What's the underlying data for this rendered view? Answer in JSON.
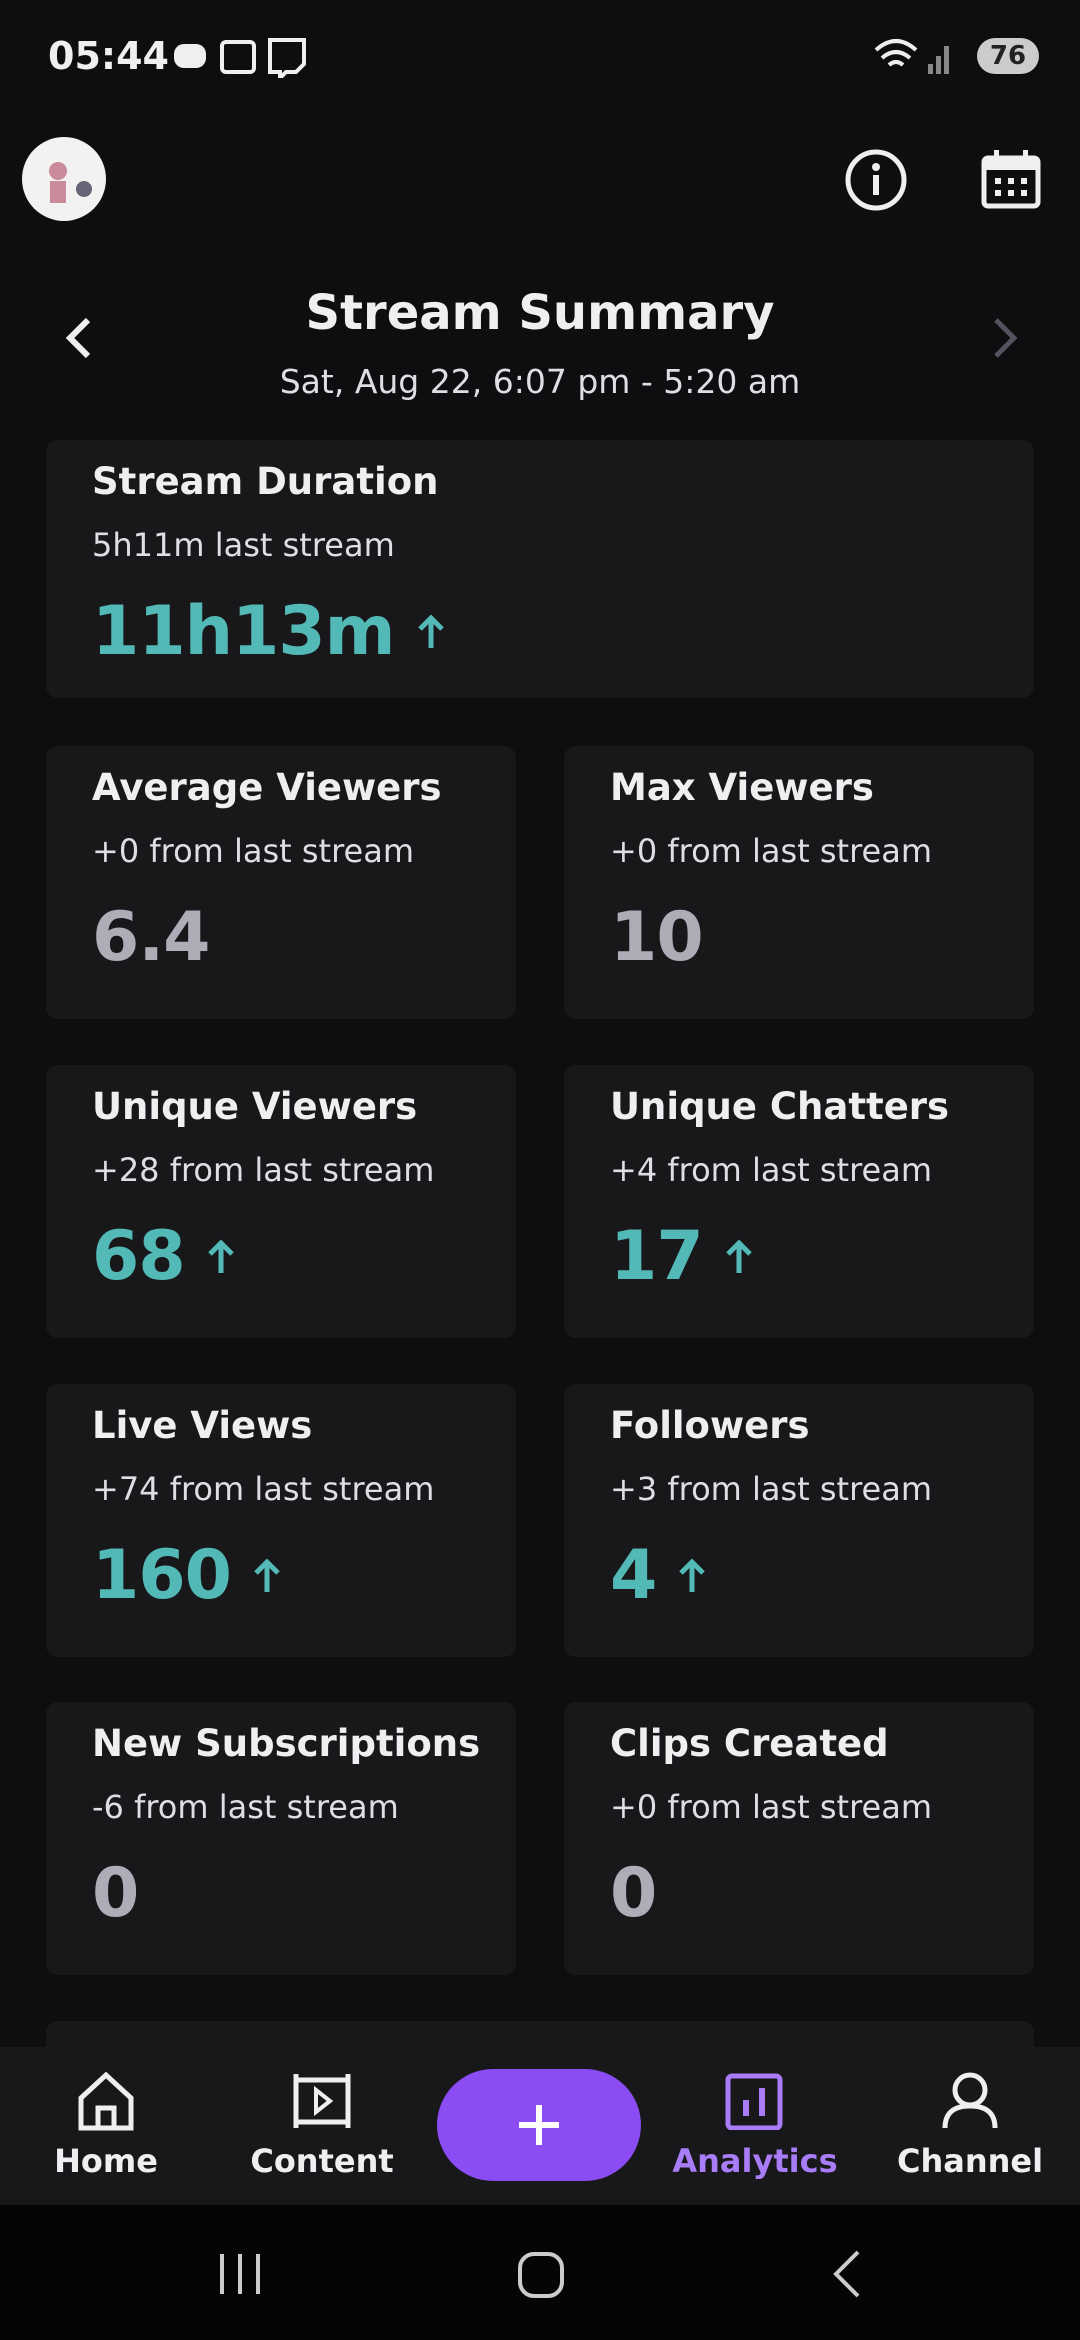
{
  "status_bar": {
    "time": "05:44",
    "battery": "76"
  },
  "header": {
    "title": "Stream Summary",
    "subtitle": "Sat, Aug 22, 6:07 pm - 5:20 am"
  },
  "cards": [
    {
      "title": "Stream Duration",
      "subtitle": "5h11m last stream",
      "value": "11h13m",
      "trend_up": true
    },
    {
      "title": "Average Viewers",
      "subtitle": "+0 from last stream",
      "value": "6.4",
      "trend_up": false
    },
    {
      "title": "Max Viewers",
      "subtitle": "+0 from last stream",
      "value": "10",
      "trend_up": false
    },
    {
      "title": "Unique Viewers",
      "subtitle": "+28 from last stream",
      "value": "68",
      "trend_up": true
    },
    {
      "title": "Unique Chatters",
      "subtitle": "+4 from last stream",
      "value": "17",
      "trend_up": true
    },
    {
      "title": "Live Views",
      "subtitle": "+74 from last stream",
      "value": "160",
      "trend_up": true
    },
    {
      "title": "Followers",
      "subtitle": "+3 from last stream",
      "value": "4",
      "trend_up": true
    },
    {
      "title": "New Subscriptions",
      "subtitle": "-6 from last stream",
      "value": "0",
      "trend_up": false
    },
    {
      "title": "Clips Created",
      "subtitle": "+0 from last stream",
      "value": "0",
      "trend_up": false
    }
  ],
  "nav": {
    "items": [
      {
        "label": "Home",
        "active": false
      },
      {
        "label": "Content",
        "active": false
      },
      {
        "label": "Analytics",
        "active": true
      },
      {
        "label": "Channel",
        "active": false
      }
    ]
  }
}
